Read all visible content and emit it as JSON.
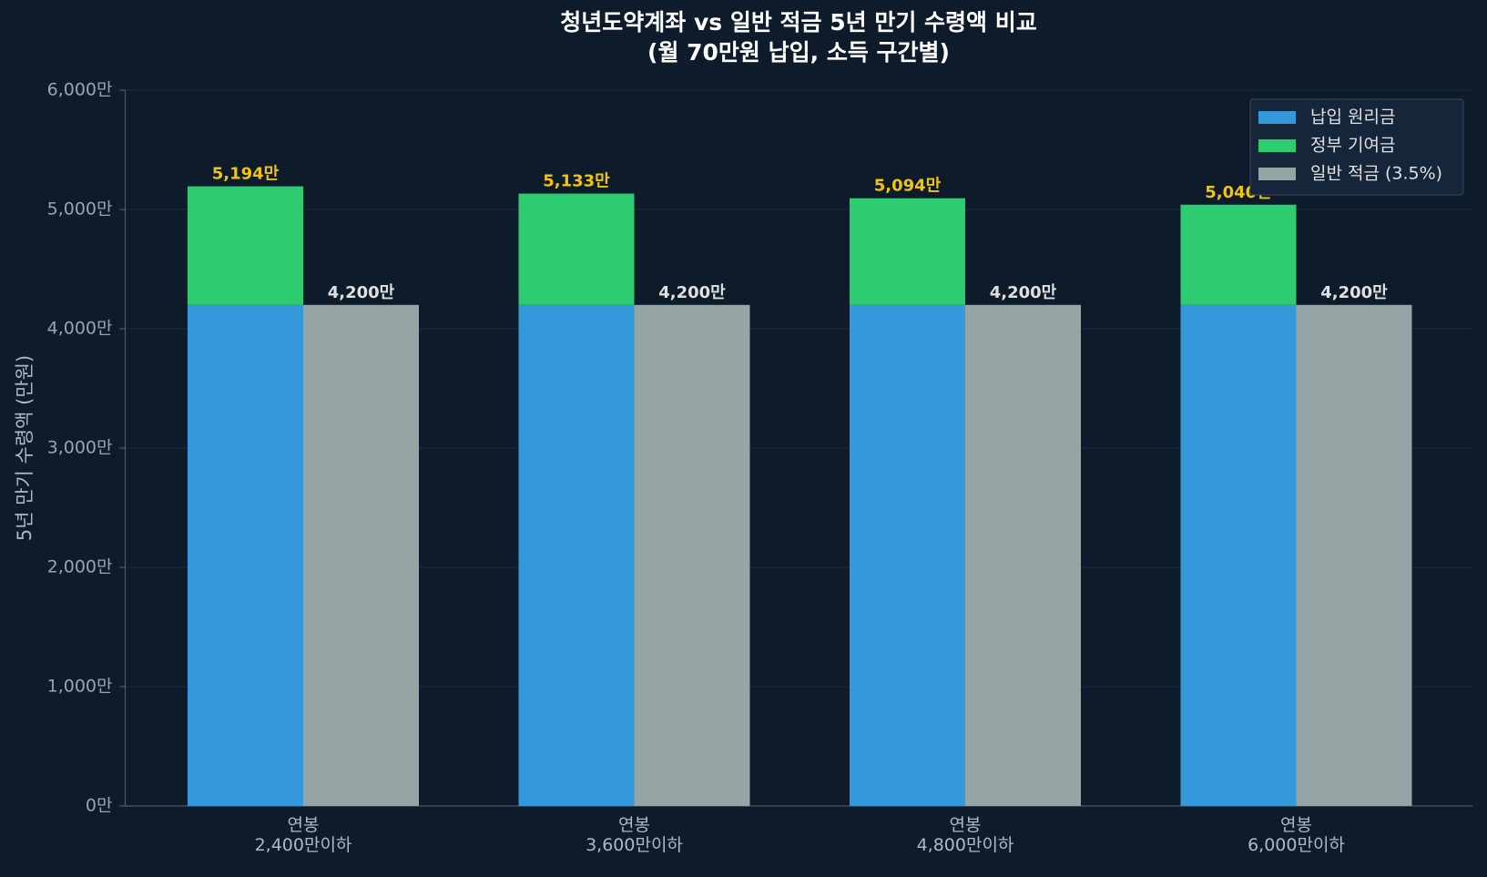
{
  "chart_data": {
    "type": "stacked-grouped-bar",
    "title": "청년도약계좌 vs 일반 적금 5년 만기 수령액 비교",
    "subtitle": "(월 70만원 납입, 소득 구간별)",
    "y_label": "5년 만기 수령액 (만원)",
    "categories": [
      "연봉\n2,400만이하",
      "연봉\n3,600만이하",
      "연봉\n4,800만이하",
      "연봉\n6,000만이하"
    ],
    "series": [
      {
        "name": "납입 원리금",
        "color": "#3498db",
        "stack": "a",
        "values": [
          4200,
          4200,
          4200,
          4200
        ]
      },
      {
        "name": "정부 기여금",
        "color": "#2ecc71",
        "stack": "a",
        "values": [
          994,
          933,
          894,
          840
        ]
      },
      {
        "name": "일반 적금 (3.5%)",
        "color": "#95a5a6",
        "stack": "b",
        "values": [
          4200,
          4200,
          4200,
          4200
        ],
        "value_labels": [
          "4,200만",
          "4,200만",
          "4,200만",
          "4,200만"
        ],
        "label_color": "#e0e0e0"
      }
    ],
    "stack_totals": {
      "stack": "a",
      "values": [
        5194,
        5133,
        5094,
        5040
      ],
      "value_labels": [
        "5,194만",
        "5,133만",
        "5,094만",
        "5,040만"
      ],
      "color": "#f1c40f"
    },
    "ylim": [
      0,
      6000
    ],
    "yticks": [
      {
        "value": 0,
        "label": "0만"
      },
      {
        "value": 1000,
        "label": "1,000만"
      },
      {
        "value": 2000,
        "label": "2,000만"
      },
      {
        "value": 3000,
        "label": "3,000만"
      },
      {
        "value": 4000,
        "label": "4,000만"
      },
      {
        "value": 5000,
        "label": "5,000만"
      },
      {
        "value": 6000,
        "label": "6,000만"
      }
    ],
    "grid": true,
    "legend": "upper right"
  }
}
